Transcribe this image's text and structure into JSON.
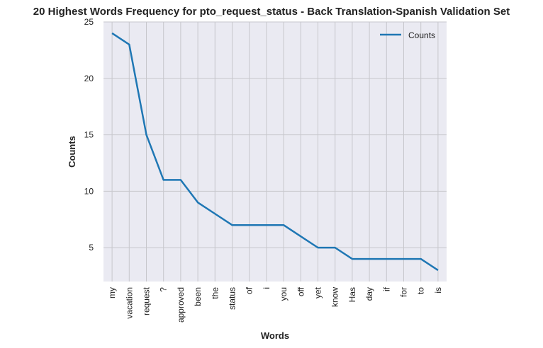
{
  "chart_data": {
    "type": "line",
    "title": "20 Highest Words Frequency for pto_request_status - Back Translation-Spanish Validation Set",
    "xlabel": "Words",
    "ylabel": "Counts",
    "categories": [
      "my",
      "vacation",
      "request",
      "?",
      "approved",
      "been",
      "the",
      "status",
      "of",
      "i",
      "you",
      "off",
      "yet",
      "know",
      "Has",
      "day",
      "if",
      "for",
      "to",
      "is"
    ],
    "series": [
      {
        "name": "Counts",
        "values": [
          24,
          23,
          15,
          11,
          11,
          9,
          8,
          7,
          7,
          7,
          7,
          6,
          5,
          5,
          4,
          4,
          4,
          4,
          4,
          3
        ]
      }
    ],
    "ylim": [
      2.0,
      25
    ],
    "yticks": [
      5,
      10,
      15,
      20,
      25
    ],
    "grid": true,
    "legend_position": "top-right",
    "colors": {
      "line": "#1f77b4",
      "plot_bg": "#eaeaf2",
      "grid": "#c7c7cc"
    }
  }
}
